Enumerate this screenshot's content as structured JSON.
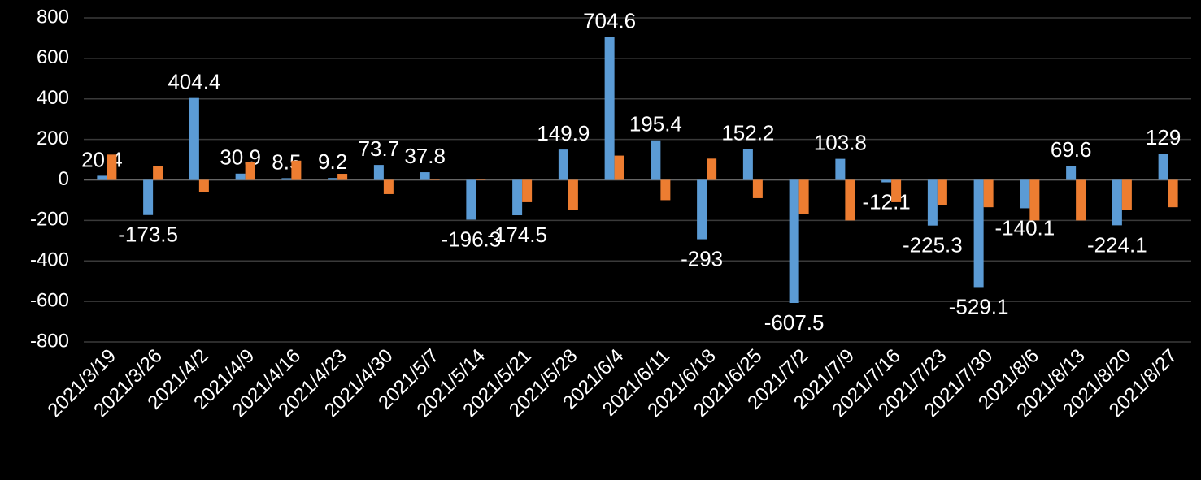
{
  "chart_data": {
    "type": "bar",
    "categories": [
      "2021/3/19",
      "2021/3/26",
      "2021/4/2",
      "2021/4/9",
      "2021/4/16",
      "2021/4/23",
      "2021/4/30",
      "2021/5/7",
      "2021/5/14",
      "2021/5/21",
      "2021/5/28",
      "2021/6/4",
      "2021/6/11",
      "2021/6/18",
      "2021/6/25",
      "2021/7/2",
      "2021/7/9",
      "2021/7/16",
      "2021/7/23",
      "2021/7/30",
      "2021/8/6",
      "2021/8/13",
      "2021/8/20",
      "2021/8/27"
    ],
    "series": [
      {
        "color": "#5b9bd5",
        "values": [
          20.4,
          -173.5,
          404.4,
          30.9,
          8.5,
          9.2,
          73.7,
          37.8,
          -196.3,
          -174.5,
          149.9,
          704.6,
          195.4,
          -293,
          152.2,
          -607.5,
          103.8,
          -12.1,
          -225.3,
          -529.1,
          -140.1,
          69.6,
          -224.1,
          129
        ]
      },
      {
        "color": "#ed7d31",
        "values": [
          125,
          70,
          -60,
          90,
          95,
          30,
          -70,
          0,
          -2,
          -110,
          -150,
          120,
          -100,
          105,
          -90,
          -170,
          -200,
          -110,
          -125,
          -135,
          -200,
          -200,
          -150,
          -135
        ]
      }
    ],
    "ylim": [
      -800,
      800
    ],
    "yticks": [
      -800,
      -600,
      -400,
      -200,
      0,
      200,
      400,
      600,
      800
    ],
    "grid": true
  }
}
